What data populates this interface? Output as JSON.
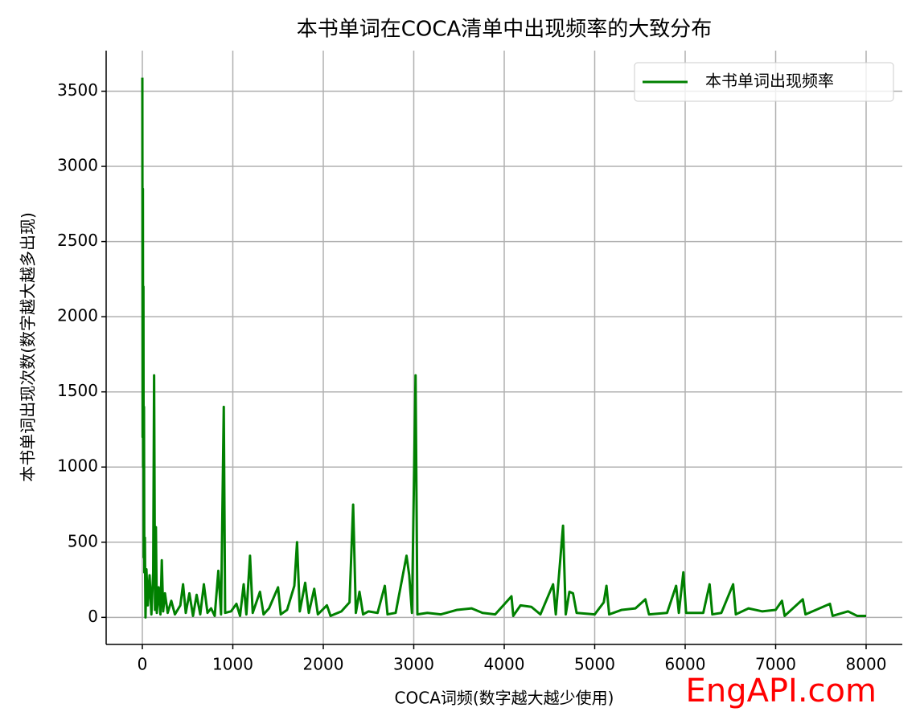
{
  "chart_data": {
    "type": "line",
    "title": "本书单词在COCA清单中出现频率的大致分布",
    "xlabel": "COCA词频(数字越大越少使用)",
    "ylabel": "本书单词出现次数(数字越大越多出现)",
    "watermark": "EngAPI.com",
    "xlim": [
      -400,
      8400
    ],
    "ylim": [
      -180,
      3770
    ],
    "xticks": [
      0,
      1000,
      2000,
      3000,
      4000,
      5000,
      6000,
      7000,
      8000
    ],
    "yticks": [
      0,
      500,
      1000,
      1500,
      2000,
      2500,
      3000,
      3500
    ],
    "grid": true,
    "legend": "upper right",
    "x": [
      0,
      3,
      6,
      9,
      12,
      15,
      18,
      22,
      28,
      35,
      45,
      60,
      80,
      100,
      120,
      130,
      140,
      150,
      160,
      180,
      200,
      215,
      230,
      250,
      280,
      320,
      360,
      420,
      450,
      480,
      520,
      560,
      600,
      640,
      680,
      720,
      760,
      800,
      840,
      870,
      900,
      915,
      980,
      1040,
      1080,
      1120,
      1150,
      1190,
      1220,
      1300,
      1340,
      1400,
      1500,
      1530,
      1600,
      1680,
      1710,
      1740,
      1800,
      1840,
      1900,
      1940,
      2040,
      2080,
      2200,
      2290,
      2330,
      2360,
      2400,
      2440,
      2500,
      2600,
      2680,
      2710,
      2800,
      2920,
      2950,
      2980,
      3020,
      3040,
      3150,
      3300,
      3480,
      3640,
      3760,
      3900,
      4080,
      4100,
      4180,
      4300,
      4400,
      4540,
      4570,
      4650,
      4680,
      4720,
      4760,
      4800,
      5000,
      5100,
      5130,
      5160,
      5300,
      5450,
      5560,
      5600,
      5800,
      5900,
      5930,
      5980,
      6010,
      6200,
      6270,
      6300,
      6400,
      6530,
      6560,
      6700,
      6850,
      7000,
      7070,
      7100,
      7300,
      7330,
      7600,
      7630,
      7800,
      7900,
      8000
    ],
    "series": [
      {
        "name": "本书单词出现频率",
        "color": "#008000",
        "values": [
          3590,
          1200,
          2850,
          1000,
          2200,
          400,
          1400,
          300,
          530,
          0,
          320,
          80,
          280,
          20,
          300,
          1610,
          50,
          600,
          30,
          200,
          20,
          380,
          40,
          160,
          30,
          110,
          20,
          80,
          220,
          30,
          160,
          10,
          150,
          20,
          220,
          30,
          60,
          10,
          310,
          20,
          1400,
          30,
          40,
          90,
          10,
          220,
          20,
          410,
          30,
          170,
          20,
          60,
          200,
          20,
          50,
          210,
          500,
          40,
          230,
          30,
          190,
          20,
          80,
          10,
          40,
          100,
          750,
          30,
          170,
          20,
          40,
          30,
          210,
          20,
          30,
          410,
          280,
          30,
          1610,
          20,
          30,
          20,
          50,
          60,
          30,
          20,
          140,
          10,
          80,
          70,
          20,
          220,
          20,
          610,
          20,
          170,
          160,
          30,
          20,
          100,
          210,
          20,
          50,
          60,
          120,
          20,
          30,
          210,
          30,
          300,
          30,
          30,
          220,
          20,
          30,
          220,
          20,
          60,
          40,
          50,
          110,
          10,
          120,
          20,
          90,
          10,
          40,
          10,
          10
        ]
      }
    ]
  }
}
